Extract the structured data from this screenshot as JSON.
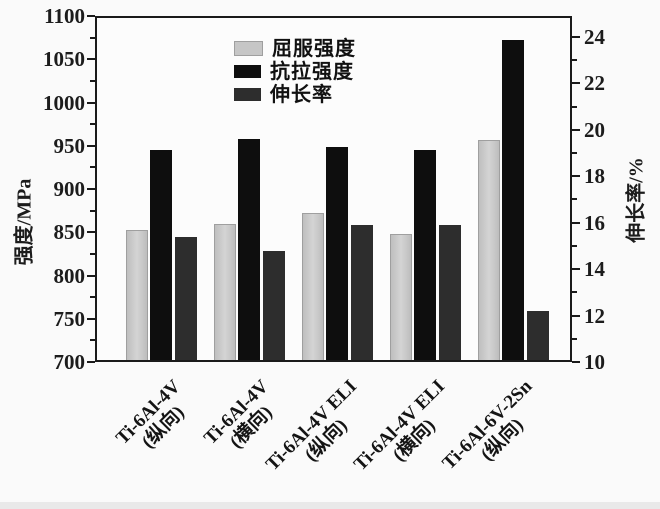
{
  "chart_data": {
    "type": "bar",
    "title": "",
    "grid": false,
    "categories": [
      {
        "line1": "Ti-6Al-4V",
        "line2": "(纵向)"
      },
      {
        "line1": "Ti-6Al-4V",
        "line2": "(横向)"
      },
      {
        "line1": "Ti-6Al-4V ELI",
        "line2": "(纵向)"
      },
      {
        "line1": "Ti-6Al-4V ELI",
        "line2": "(横向)"
      },
      {
        "line1": "Ti-6Al-6V-2Sn",
        "line2": "(纵向)"
      }
    ],
    "series": [
      {
        "name": "屈服强度",
        "axis": "left",
        "color": "#c6c6c6",
        "values": [
          853,
          860,
          872,
          848,
          957
        ]
      },
      {
        "name": "抗拉强度",
        "axis": "left",
        "color": "#0e0e0e",
        "values": [
          945,
          958,
          948,
          945,
          1072
        ]
      },
      {
        "name": "伸长率",
        "axis": "right",
        "color": "#2d2d2d",
        "values": [
          15.4,
          14.8,
          15.9,
          15.9,
          12.2
        ]
      }
    ],
    "left_axis": {
      "label": "强度/MPa",
      "min": 700,
      "max": 1100,
      "major_tick_labels": [
        "700",
        "750",
        "800",
        "850",
        "900",
        "950",
        "1000",
        "1050",
        "1100"
      ],
      "major_step": 50,
      "minor_step": 25
    },
    "right_axis": {
      "label": "伸长率/%",
      "min": 10,
      "max": 24.9,
      "major_tick_labels": [
        "10",
        "12",
        "14",
        "16",
        "18",
        "20",
        "22",
        "24"
      ],
      "major_step": 2,
      "minor_step": 1
    },
    "legend": {
      "position": "top-center",
      "entries": [
        "屈服强度",
        "抗拉强度",
        "伸长率"
      ]
    }
  }
}
